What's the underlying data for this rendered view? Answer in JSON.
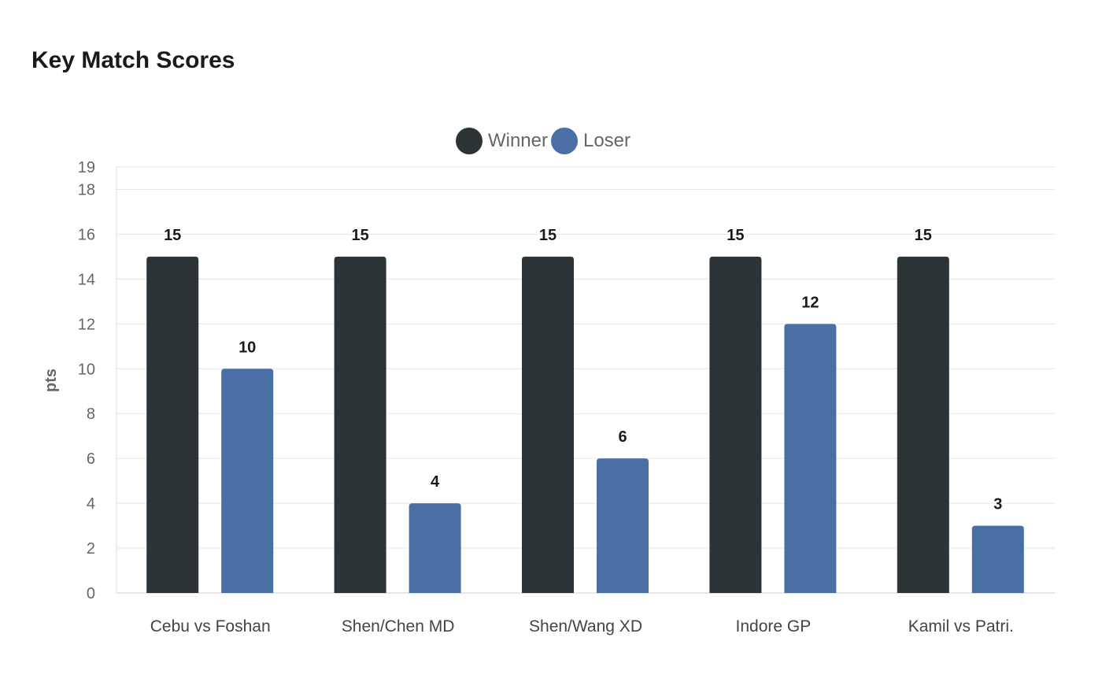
{
  "title": "Key Match Scores",
  "colors": {
    "Winner": "#2c3437",
    "Loser": "#4a6fa5"
  },
  "chart_data": {
    "type": "bar",
    "title": "Key Match Scores",
    "xlabel": "",
    "ylabel": "pts",
    "ylim": [
      0,
      19
    ],
    "yticks": [
      0,
      2,
      4,
      6,
      8,
      10,
      12,
      14,
      16,
      18,
      19
    ],
    "grid": true,
    "legend_position": "top",
    "categories": [
      "Cebu vs Foshan",
      "Shen/Chen MD",
      "Shen/Wang XD",
      "Indore GP",
      "Kamil vs Patri."
    ],
    "series": [
      {
        "name": "Winner",
        "values": [
          15,
          15,
          15,
          15,
          15
        ]
      },
      {
        "name": "Loser",
        "values": [
          10,
          4,
          6,
          12,
          3
        ]
      }
    ]
  }
}
